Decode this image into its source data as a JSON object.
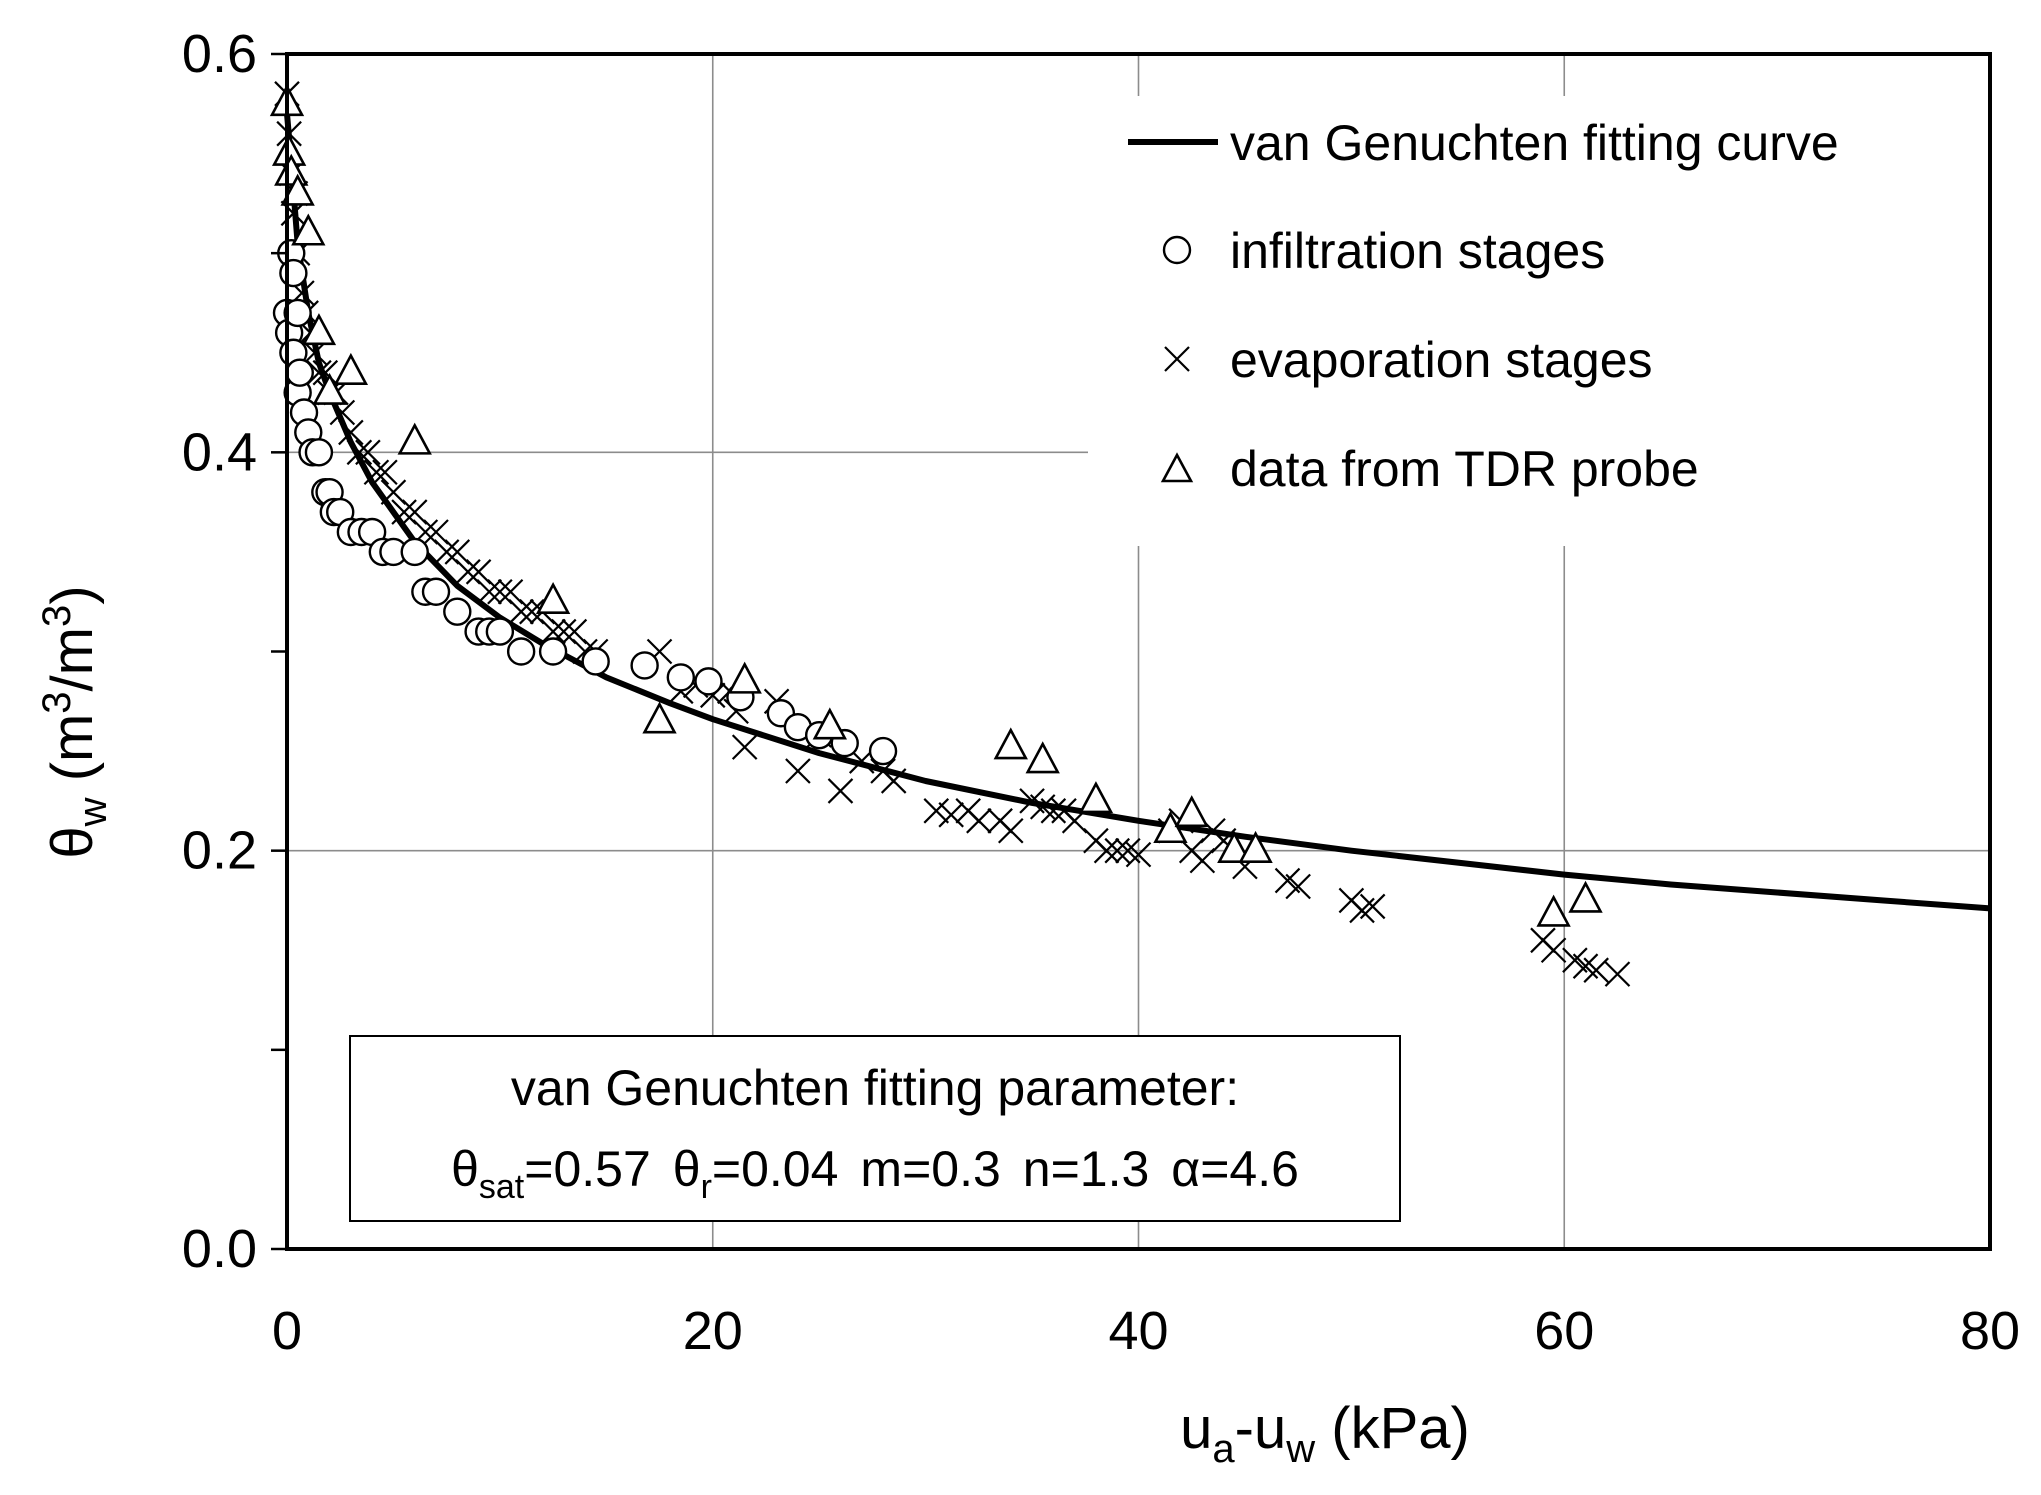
{
  "chart_data": {
    "type": "scatter",
    "xlabel": {
      "main": "u",
      "sub1": "a",
      "mid": "-u",
      "sub2": "w",
      "tail": " (kPa)"
    },
    "ylabel": {
      "main": "θ",
      "sub": "w",
      "open": " (m",
      "sup1": "3",
      "slash": "/m",
      "sup2": "3",
      "close": ")"
    },
    "xlim": [
      0,
      80
    ],
    "ylim": [
      0,
      0.6
    ],
    "xticks": [
      0,
      20,
      40,
      60,
      80
    ],
    "xtick_labels": [
      "0",
      "20",
      "40",
      "60",
      "80"
    ],
    "yticks": [
      0,
      0.2,
      0.4,
      0.6
    ],
    "ytick_labels": [
      "0.0",
      "0.2",
      "0.4",
      "0.6"
    ],
    "grid": true,
    "legend": {
      "position": "top-right",
      "entries": [
        {
          "label": "van Genuchten fitting curve",
          "marker": "line"
        },
        {
          "label": "infiltration stages",
          "marker": "circle"
        },
        {
          "label": "evaporation stages",
          "marker": "cross"
        },
        {
          "label": "data from TDR probe",
          "marker": "triangle"
        }
      ]
    },
    "parameter_box": {
      "title": "van Genuchten fitting parameter:",
      "params": [
        {
          "sym": "θ",
          "sub": "sat",
          "val": "=0.57"
        },
        {
          "sym": "θ",
          "sub": "r",
          "val": "=0.04"
        },
        {
          "sym": "",
          "sub": "",
          "val": "m=0.3"
        },
        {
          "sym": "",
          "sub": "",
          "val": "n=1.3"
        },
        {
          "sym": "α",
          "sub": "",
          "val": "=4.6"
        }
      ]
    },
    "series": [
      {
        "name": "van Genuchten fitting curve",
        "kind": "line",
        "x": [
          0,
          0.2,
          0.5,
          1,
          1.5,
          2,
          3,
          4,
          5,
          6,
          8,
          10,
          12,
          15,
          18,
          20,
          25,
          30,
          35,
          40,
          45,
          50,
          55,
          60,
          65,
          70,
          75,
          80
        ],
        "y": [
          0.57,
          0.545,
          0.505,
          0.47,
          0.445,
          0.43,
          0.405,
          0.385,
          0.37,
          0.355,
          0.333,
          0.317,
          0.304,
          0.287,
          0.274,
          0.266,
          0.249,
          0.235,
          0.224,
          0.215,
          0.207,
          0.2,
          0.194,
          0.188,
          0.183,
          0.179,
          0.175,
          0.171
        ]
      },
      {
        "name": "infiltration stages",
        "kind": "circle",
        "x": [
          0,
          0.1,
          0.2,
          0.3,
          0.3,
          0.5,
          0.5,
          0.6,
          0.8,
          1,
          1.2,
          1.5,
          1.8,
          2,
          2.2,
          2.5,
          3,
          3.5,
          4,
          4.5,
          5,
          6,
          6.5,
          7,
          8,
          9,
          9.5,
          10,
          11,
          12.5,
          14.5,
          16.8,
          18.5,
          19.8,
          21.3,
          23.2,
          24,
          25,
          26.2,
          28
        ],
        "y": [
          0.47,
          0.46,
          0.5,
          0.45,
          0.49,
          0.47,
          0.43,
          0.44,
          0.42,
          0.41,
          0.4,
          0.4,
          0.38,
          0.38,
          0.37,
          0.37,
          0.36,
          0.36,
          0.36,
          0.35,
          0.35,
          0.35,
          0.33,
          0.33,
          0.32,
          0.31,
          0.31,
          0.31,
          0.3,
          0.3,
          0.295,
          0.293,
          0.287,
          0.285,
          0.277,
          0.269,
          0.262,
          0.258,
          0.254,
          0.25
        ]
      },
      {
        "name": "evaporation stages",
        "kind": "cross",
        "x": [
          0,
          0.1,
          0.2,
          0.3,
          0.4,
          0.5,
          0.7,
          0.9,
          1.1,
          1.3,
          1.5,
          1.8,
          2,
          2.3,
          2.6,
          3,
          3.4,
          3.8,
          4.2,
          4.6,
          5,
          5.5,
          6,
          6.5,
          7,
          7.5,
          8,
          8.5,
          9,
          9.5,
          10,
          10.5,
          11,
          11.5,
          12,
          12.5,
          13,
          13.5,
          14,
          14.5,
          17.5,
          18.5,
          19.2,
          20,
          20.8,
          21.1,
          21.5,
          23,
          24,
          25,
          26,
          27,
          28,
          28.5,
          30.5,
          31.2,
          32,
          32.5,
          33.5,
          34,
          35,
          35.5,
          36,
          36.5,
          37,
          38,
          38.5,
          39,
          39.5,
          40,
          41.5,
          42,
          42.5,
          43,
          43.5,
          44,
          45,
          47,
          47.5,
          50,
          50.5,
          51,
          59,
          59.5,
          60.5,
          61,
          61.5,
          62.5
        ],
        "y": [
          0.58,
          0.56,
          0.54,
          0.52,
          0.53,
          0.5,
          0.48,
          0.47,
          0.46,
          0.45,
          0.44,
          0.44,
          0.43,
          0.43,
          0.42,
          0.41,
          0.4,
          0.4,
          0.39,
          0.39,
          0.38,
          0.37,
          0.37,
          0.36,
          0.36,
          0.35,
          0.35,
          0.34,
          0.34,
          0.33,
          0.33,
          0.33,
          0.32,
          0.32,
          0.32,
          0.31,
          0.31,
          0.31,
          0.3,
          0.3,
          0.3,
          0.28,
          0.283,
          0.278,
          0.28,
          0.27,
          0.252,
          0.275,
          0.24,
          0.258,
          0.23,
          0.245,
          0.24,
          0.235,
          0.22,
          0.218,
          0.22,
          0.215,
          0.215,
          0.21,
          0.225,
          0.222,
          0.22,
          0.22,
          0.215,
          0.205,
          0.2,
          0.2,
          0.2,
          0.198,
          0.21,
          0.215,
          0.2,
          0.195,
          0.21,
          0.205,
          0.192,
          0.185,
          0.182,
          0.175,
          0.17,
          0.172,
          0.155,
          0.15,
          0.145,
          0.142,
          0.14,
          0.138
        ]
      },
      {
        "name": "data from TDR probe",
        "kind": "triangle",
        "x": [
          0,
          0.1,
          0.2,
          0.5,
          1,
          1.5,
          2,
          3,
          6,
          12.5,
          17.5,
          21.5,
          25.5,
          34,
          35.5,
          38,
          41.5,
          42.5,
          44.5,
          45.5,
          59.5,
          61
        ],
        "y": [
          0.575,
          0.55,
          0.54,
          0.53,
          0.51,
          0.46,
          0.43,
          0.44,
          0.405,
          0.325,
          0.265,
          0.285,
          0.262,
          0.252,
          0.245,
          0.225,
          0.21,
          0.218,
          0.2,
          0.2,
          0.168,
          0.175
        ]
      }
    ]
  }
}
